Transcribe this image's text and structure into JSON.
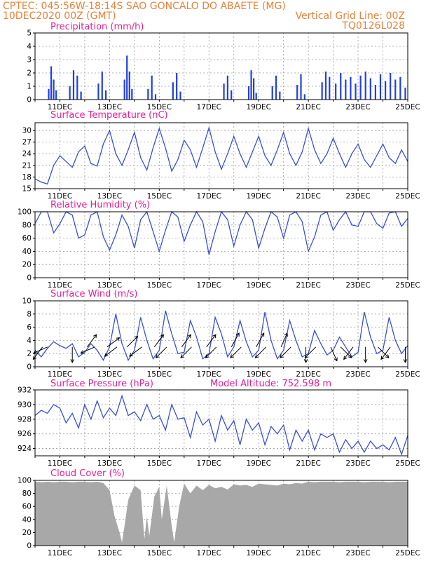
{
  "header": {
    "line1": "CPTEC:   045:56W-18:14S  SAO GONCALO DO ABAETE (MG)",
    "line2_left": "10DEC2020 00Z (GMT)",
    "line2_right": "Vertical Grid Line: 00Z",
    "line3_right": "TQ0126L028"
  },
  "colors": {
    "header": "#e8823a",
    "panel_title": "#e0209a",
    "series_line": "#3a4fd8",
    "bars": "#1f3fe6",
    "cloud": "#a8a8a8",
    "arrows": "#000000"
  },
  "x_axis": {
    "start_day": 10,
    "end_day": 25,
    "tick_labels": [
      "11DEC",
      "13DEC",
      "15DEC",
      "17DEC",
      "19DEC",
      "21DEC",
      "23DEC",
      "25DEC"
    ],
    "tick_days": [
      11,
      13,
      15,
      17,
      19,
      21,
      23,
      25
    ],
    "vertical_grid": "00Z"
  },
  "chart_data": [
    {
      "id": "precip",
      "type": "bar",
      "title": "Precipitation (mm/h)",
      "ylim": [
        0,
        5
      ],
      "yticks": [
        0,
        1,
        2,
        3,
        4,
        5
      ],
      "grid": true,
      "x_day": [
        10.55,
        10.65,
        10.75,
        10.85,
        11.4,
        11.55,
        11.7,
        11.85,
        12.55,
        12.7,
        12.85,
        13.6,
        13.7,
        13.8,
        13.9,
        14.55,
        14.7,
        14.85,
        15.55,
        15.7,
        15.85,
        17.6,
        17.75,
        17.9,
        18.6,
        18.7,
        18.8,
        18.9,
        19.55,
        19.7,
        19.85,
        20.55,
        20.7,
        20.85,
        21.55,
        21.7,
        21.85,
        22.1,
        22.3,
        22.5,
        22.7,
        22.9,
        23.1,
        23.3,
        23.5,
        23.7,
        23.9,
        24.1,
        24.3,
        24.5,
        24.7,
        24.9
      ],
      "values": [
        0.8,
        2.5,
        1.5,
        0.7,
        1.0,
        2.2,
        1.8,
        0.6,
        1.2,
        2.1,
        0.7,
        1.5,
        3.3,
        2.1,
        0.8,
        0.8,
        1.8,
        0.4,
        1.3,
        2.0,
        0.6,
        1.2,
        1.8,
        0.7,
        1.0,
        2.2,
        1.6,
        0.5,
        1.0,
        1.8,
        0.6,
        1.1,
        1.9,
        0.4,
        1.3,
        2.1,
        1.7,
        1.2,
        2.0,
        1.5,
        1.7,
        1.2,
        1.8,
        2.1,
        1.6,
        1.1,
        1.9,
        1.4,
        2.0,
        1.5,
        1.7,
        0.9
      ]
    },
    {
      "id": "temp",
      "type": "line",
      "title": "Surface Temperature (nC)",
      "ylim": [
        15,
        32
      ],
      "yticks": [
        15,
        18,
        21,
        24,
        27,
        30
      ],
      "grid": true,
      "x_day": [
        10.0,
        10.25,
        10.5,
        10.75,
        11.0,
        11.25,
        11.5,
        11.75,
        12.0,
        12.25,
        12.5,
        12.75,
        13.0,
        13.25,
        13.5,
        13.75,
        14.0,
        14.25,
        14.5,
        14.75,
        15.0,
        15.25,
        15.5,
        15.75,
        16.0,
        16.25,
        16.5,
        16.75,
        17.0,
        17.25,
        17.5,
        17.75,
        18.0,
        18.25,
        18.5,
        18.75,
        19.0,
        19.25,
        19.5,
        19.75,
        20.0,
        20.25,
        20.5,
        20.75,
        21.0,
        21.25,
        21.5,
        21.75,
        22.0,
        22.25,
        22.5,
        22.75,
        23.0,
        23.25,
        23.5,
        23.75,
        24.0,
        24.25,
        24.5,
        24.75,
        25.0
      ],
      "values": [
        17.5,
        16.7,
        16.2,
        21.0,
        23.5,
        22.0,
        20.5,
        24.5,
        26.0,
        21.5,
        20.8,
        26.5,
        30.0,
        24.0,
        21.0,
        25.0,
        29.5,
        23.0,
        19.8,
        25.5,
        30.5,
        25.5,
        19.5,
        22.5,
        27.5,
        25.0,
        20.5,
        25.5,
        30.7,
        24.5,
        20.0,
        24.0,
        28.5,
        24.0,
        20.5,
        24.5,
        28.5,
        23.5,
        21.0,
        25.0,
        29.5,
        24.0,
        21.0,
        24.5,
        30.5,
        25.0,
        21.5,
        24.0,
        28.0,
        24.0,
        20.5,
        24.0,
        26.5,
        22.5,
        20.5,
        23.5,
        26.5,
        23.0,
        21.5,
        25.0,
        22.0
      ]
    },
    {
      "id": "rh",
      "type": "line",
      "title": "Relative Humidity (%)",
      "ylim": [
        0,
        100
      ],
      "yticks": [
        0,
        20,
        40,
        60,
        80,
        100
      ],
      "grid": true,
      "x_day": [
        10.0,
        10.25,
        10.5,
        10.75,
        11.0,
        11.25,
        11.5,
        11.75,
        12.0,
        12.25,
        12.5,
        12.75,
        13.0,
        13.25,
        13.5,
        13.75,
        14.0,
        14.25,
        14.5,
        14.75,
        15.0,
        15.25,
        15.5,
        15.75,
        16.0,
        16.25,
        16.5,
        16.75,
        17.0,
        17.25,
        17.5,
        17.75,
        18.0,
        18.25,
        18.5,
        18.75,
        19.0,
        19.25,
        19.5,
        19.75,
        20.0,
        20.25,
        20.5,
        20.75,
        21.0,
        21.25,
        21.5,
        21.75,
        22.0,
        22.25,
        22.5,
        22.75,
        23.0,
        23.25,
        23.5,
        23.75,
        24.0,
        24.25,
        24.5,
        24.75,
        25.0
      ],
      "values": [
        82,
        100,
        100,
        68,
        82,
        100,
        95,
        60,
        65,
        95,
        100,
        62,
        42,
        65,
        95,
        78,
        45,
        88,
        100,
        70,
        40,
        72,
        100,
        92,
        55,
        80,
        100,
        85,
        35,
        70,
        100,
        88,
        48,
        80,
        100,
        88,
        45,
        75,
        100,
        92,
        60,
        95,
        100,
        85,
        40,
        62,
        95,
        100,
        72,
        88,
        100,
        80,
        78,
        100,
        100,
        82,
        75,
        98,
        100,
        78,
        90
      ]
    },
    {
      "id": "wind",
      "type": "line",
      "title": "Surface Wind (m/s)",
      "ylim": [
        0,
        10
      ],
      "yticks": [
        0,
        2,
        4,
        6,
        8,
        10
      ],
      "grid": true,
      "x_day": [
        10.0,
        10.25,
        10.5,
        10.75,
        11.0,
        11.25,
        11.5,
        11.75,
        12.0,
        12.25,
        12.5,
        12.75,
        13.0,
        13.25,
        13.5,
        13.75,
        14.0,
        14.25,
        14.5,
        14.75,
        15.0,
        15.25,
        15.5,
        15.75,
        16.0,
        16.25,
        16.5,
        16.75,
        17.0,
        17.25,
        17.5,
        17.75,
        18.0,
        18.25,
        18.5,
        18.75,
        19.0,
        19.25,
        19.5,
        19.75,
        20.0,
        20.25,
        20.5,
        20.75,
        21.0,
        21.25,
        21.5,
        21.75,
        22.0,
        22.25,
        22.5,
        22.75,
        23.0,
        23.25,
        23.5,
        23.75,
        24.0,
        24.25,
        24.5,
        24.75,
        25.0
      ],
      "values": [
        2.5,
        1.5,
        2.8,
        3.8,
        3.2,
        2.8,
        3.5,
        1.5,
        2.2,
        3.5,
        2.5,
        1.0,
        3.0,
        8.0,
        3.5,
        1.0,
        2.5,
        7.5,
        4.0,
        1.2,
        2.5,
        8.5,
        5.0,
        2.0,
        2.2,
        7.0,
        4.5,
        1.2,
        2.0,
        7.5,
        5.0,
        1.5,
        3.0,
        7.0,
        3.8,
        1.5,
        2.5,
        8.3,
        4.0,
        1.2,
        2.5,
        7.0,
        4.0,
        1.5,
        2.0,
        5.5,
        3.5,
        1.8,
        2.5,
        4.5,
        3.0,
        1.5,
        2.2,
        8.3,
        4.5,
        2.0,
        2.5,
        7.5,
        4.0,
        2.0,
        3.2
      ],
      "vectors": [
        {
          "day": 10.3,
          "u": -0.6,
          "v": -0.8
        },
        {
          "day": 10.5,
          "u": -0.9,
          "v": -0.4
        },
        {
          "day": 11.5,
          "u": 0.0,
          "v": -1.0
        },
        {
          "day": 12.1,
          "u": 0.6,
          "v": 0.8
        },
        {
          "day": 12.4,
          "u": -0.9,
          "v": -0.4
        },
        {
          "day": 12.9,
          "u": 0.8,
          "v": 0.6
        },
        {
          "day": 13.3,
          "u": -0.8,
          "v": -0.6
        },
        {
          "day": 13.7,
          "u": 0.7,
          "v": 0.7
        },
        {
          "day": 14.3,
          "u": -0.8,
          "v": -0.6
        },
        {
          "day": 14.8,
          "u": 0.6,
          "v": 0.8
        },
        {
          "day": 15.3,
          "u": -0.7,
          "v": -0.7
        },
        {
          "day": 15.9,
          "u": 0.6,
          "v": 0.8
        },
        {
          "day": 16.3,
          "u": -0.7,
          "v": -0.7
        },
        {
          "day": 16.9,
          "u": 0.6,
          "v": 0.8
        },
        {
          "day": 17.3,
          "u": -0.7,
          "v": -0.7
        },
        {
          "day": 17.9,
          "u": 0.5,
          "v": 0.9
        },
        {
          "day": 18.3,
          "u": -0.7,
          "v": -0.7
        },
        {
          "day": 18.9,
          "u": 0.5,
          "v": 0.9
        },
        {
          "day": 19.3,
          "u": -0.7,
          "v": -0.7
        },
        {
          "day": 19.9,
          "u": 0.4,
          "v": 0.9
        },
        {
          "day": 20.3,
          "u": -0.7,
          "v": -0.7
        },
        {
          "day": 20.9,
          "u": 0.0,
          "v": -1.0
        },
        {
          "day": 21.3,
          "u": -0.7,
          "v": -0.7
        },
        {
          "day": 21.9,
          "u": 0.4,
          "v": -0.9
        },
        {
          "day": 22.3,
          "u": 0.7,
          "v": -0.7
        },
        {
          "day": 22.8,
          "u": -0.6,
          "v": -0.8
        },
        {
          "day": 23.3,
          "u": 0.0,
          "v": -1.0
        },
        {
          "day": 23.8,
          "u": 0.7,
          "v": -0.7
        },
        {
          "day": 24.3,
          "u": -0.6,
          "v": -0.8
        },
        {
          "day": 24.9,
          "u": 0.0,
          "v": -1.0
        }
      ]
    },
    {
      "id": "pressure",
      "type": "line",
      "title": "Surface Pressure (hPa)",
      "extra_label": "Model Altitude: 752.598  m",
      "ylim": [
        923,
        932
      ],
      "yticks": [
        924,
        926,
        928,
        930,
        932
      ],
      "grid": true,
      "x_day": [
        10.0,
        10.25,
        10.5,
        10.75,
        11.0,
        11.25,
        11.5,
        11.75,
        12.0,
        12.25,
        12.5,
        12.75,
        13.0,
        13.25,
        13.5,
        13.75,
        14.0,
        14.25,
        14.5,
        14.75,
        15.0,
        15.25,
        15.5,
        15.75,
        16.0,
        16.25,
        16.5,
        16.75,
        17.0,
        17.25,
        17.5,
        17.75,
        18.0,
        18.25,
        18.5,
        18.75,
        19.0,
        19.25,
        19.5,
        19.75,
        20.0,
        20.25,
        20.5,
        20.75,
        21.0,
        21.25,
        21.5,
        21.75,
        22.0,
        22.25,
        22.5,
        22.75,
        23.0,
        23.25,
        23.5,
        23.75,
        24.0,
        24.25,
        24.5,
        24.75,
        25.0
      ],
      "values": [
        928.5,
        929.2,
        928.8,
        930.0,
        929.5,
        927.5,
        928.8,
        926.8,
        930.0,
        928.0,
        930.5,
        928.2,
        929.5,
        928.5,
        931.2,
        928.5,
        929.0,
        927.8,
        930.0,
        928.0,
        928.5,
        926.5,
        930.0,
        928.0,
        928.2,
        925.5,
        929.0,
        927.2,
        928.0,
        925.0,
        928.5,
        926.5,
        927.8,
        924.5,
        928.0,
        926.5,
        927.5,
        924.5,
        927.0,
        926.0,
        927.2,
        923.8,
        926.5,
        925.0,
        926.5,
        923.8,
        926.0,
        925.5,
        926.0,
        923.5,
        925.2,
        924.0,
        925.0,
        923.5,
        925.0,
        924.0,
        924.5,
        923.8,
        925.5,
        923.2,
        925.8
      ]
    },
    {
      "id": "cloud",
      "type": "area",
      "title": "Cloud Cover (%)",
      "ylim": [
        0,
        100
      ],
      "yticks": [
        0,
        20,
        40,
        60,
        80,
        100
      ],
      "grid": true,
      "x_day": [
        10.0,
        10.25,
        10.5,
        10.75,
        11.0,
        11.25,
        11.5,
        11.75,
        12.0,
        12.25,
        12.5,
        12.75,
        13.0,
        13.2,
        13.4,
        13.5,
        13.6,
        13.75,
        14.0,
        14.25,
        14.4,
        14.5,
        14.6,
        14.8,
        15.0,
        15.1,
        15.3,
        15.5,
        15.6,
        15.8,
        16.0,
        16.25,
        16.5,
        16.75,
        17.0,
        17.25,
        17.5,
        17.75,
        18.0,
        18.25,
        18.5,
        18.75,
        19.0,
        19.25,
        19.5,
        19.75,
        20.0,
        20.25,
        20.5,
        20.75,
        21.0,
        21.25,
        21.5,
        21.75,
        22.0,
        22.25,
        22.5,
        22.75,
        23.0,
        23.25,
        23.5,
        23.75,
        24.0,
        24.25,
        24.5,
        24.75,
        25.0
      ],
      "values": [
        98,
        97,
        98,
        97,
        98,
        98,
        97,
        98,
        98,
        97,
        98,
        96,
        85,
        45,
        20,
        5,
        30,
        70,
        92,
        85,
        10,
        45,
        15,
        75,
        90,
        40,
        92,
        30,
        5,
        60,
        95,
        80,
        92,
        85,
        93,
        88,
        90,
        86,
        94,
        92,
        93,
        90,
        95,
        94,
        93,
        92,
        95,
        94,
        96,
        95,
        98,
        97,
        98,
        98,
        98,
        97,
        98,
        98,
        98,
        97,
        98,
        98,
        98,
        97,
        98,
        98,
        98
      ]
    }
  ]
}
